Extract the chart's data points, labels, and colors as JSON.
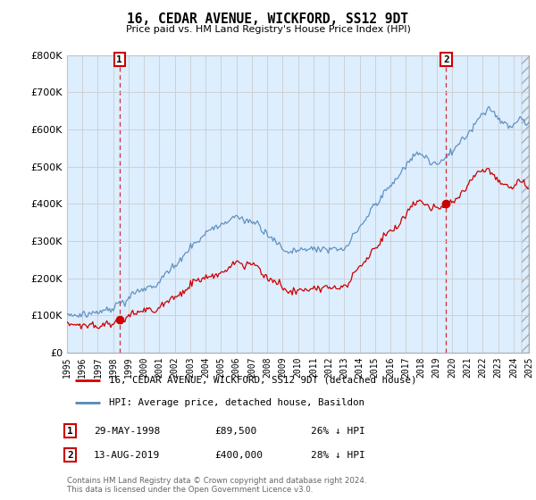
{
  "title": "16, CEDAR AVENUE, WICKFORD, SS12 9DT",
  "subtitle": "Price paid vs. HM Land Registry's House Price Index (HPI)",
  "ylim": [
    0,
    800000
  ],
  "xlim_start": 1995,
  "xlim_end": 2025,
  "sale1_date": 1998.41,
  "sale1_price": 89500,
  "sale2_date": 2019.62,
  "sale2_price": 400000,
  "legend_line1": "16, CEDAR AVENUE, WICKFORD, SS12 9DT (detached house)",
  "legend_line2": "HPI: Average price, detached house, Basildon",
  "annot1_date": "29-MAY-1998",
  "annot1_price": "£89,500",
  "annot1_hpi": "26% ↓ HPI",
  "annot2_date": "13-AUG-2019",
  "annot2_price": "£400,000",
  "annot2_hpi": "28% ↓ HPI",
  "footer": "Contains HM Land Registry data © Crown copyright and database right 2024.\nThis data is licensed under the Open Government Licence v3.0.",
  "red_color": "#cc0000",
  "blue_color": "#5588bb",
  "blue_fill": "#ddeeff",
  "grid_color": "#cccccc",
  "background_color": "#ffffff"
}
